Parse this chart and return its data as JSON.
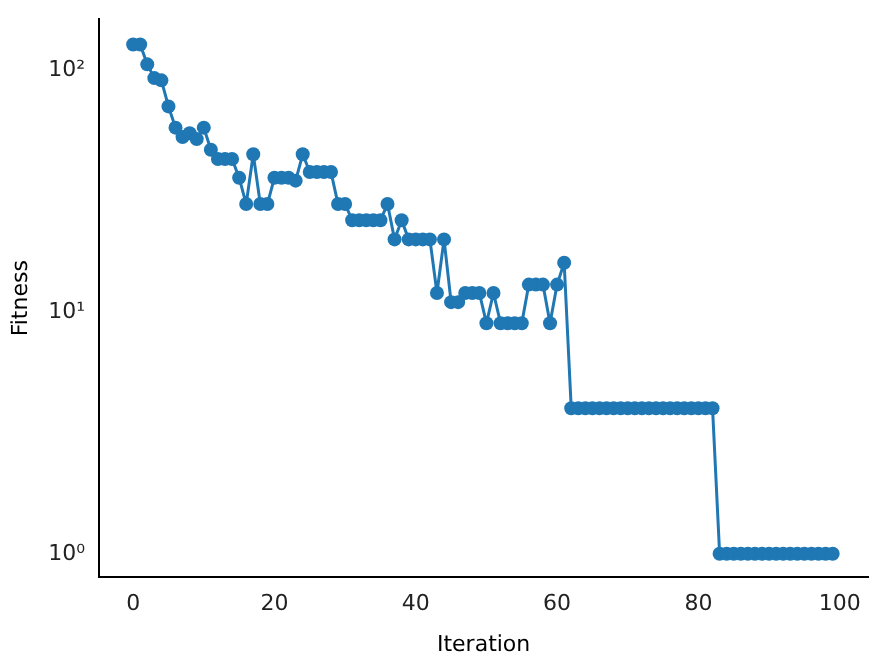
{
  "chart_data": {
    "type": "line",
    "xlabel": "Iteration",
    "ylabel": "Fitness",
    "log": "y",
    "marker": "circle",
    "grid": false,
    "xlim": [
      -4.8,
      104
    ],
    "xticks": [
      0,
      20,
      40,
      60,
      80,
      100
    ],
    "ylim": [
      0.8,
      163
    ],
    "yticks": [
      {
        "value": 1,
        "label": "10⁰"
      },
      {
        "value": 10,
        "label": "10¹"
      },
      {
        "value": 100,
        "label": "10²"
      }
    ],
    "x": [
      0,
      1,
      2,
      3,
      4,
      5,
      6,
      7,
      8,
      9,
      10,
      11,
      12,
      13,
      14,
      15,
      16,
      17,
      18,
      19,
      20,
      21,
      22,
      23,
      24,
      25,
      26,
      27,
      28,
      29,
      30,
      31,
      32,
      33,
      34,
      35,
      36,
      37,
      38,
      39,
      40,
      41,
      42,
      43,
      44,
      45,
      46,
      47,
      48,
      49,
      50,
      51,
      52,
      53,
      54,
      55,
      56,
      57,
      58,
      59,
      60,
      61,
      62,
      63,
      64,
      65,
      66,
      67,
      68,
      69,
      70,
      71,
      72,
      73,
      74,
      75,
      76,
      77,
      78,
      79,
      80,
      81,
      82,
      83,
      84,
      85,
      86,
      87,
      88,
      89,
      90,
      91,
      92,
      93,
      94,
      95,
      96,
      97,
      98,
      99
    ],
    "series": [
      {
        "color": "#1f77b4",
        "values": [
          128,
          128,
          106,
          93,
          91,
          71,
          58,
          53,
          55,
          52,
          58,
          47,
          43,
          43,
          43,
          36,
          28,
          45,
          28,
          28,
          36,
          36,
          36,
          35,
          45,
          38,
          38,
          38,
          38,
          28,
          28,
          24,
          24,
          24,
          24,
          24,
          28,
          20,
          24,
          20,
          20,
          20,
          20,
          12,
          20,
          11,
          11,
          12,
          12,
          12,
          9,
          12,
          9,
          9,
          9,
          9,
          13,
          13,
          13,
          9,
          13,
          16,
          4,
          4,
          4,
          4,
          4,
          4,
          4,
          4,
          4,
          4,
          4,
          4,
          4,
          4,
          4,
          4,
          4,
          4,
          4,
          4,
          4,
          1,
          1,
          1,
          1,
          1,
          1,
          1,
          1,
          1,
          1,
          1,
          1,
          1,
          1,
          1,
          1,
          1
        ]
      }
    ]
  }
}
